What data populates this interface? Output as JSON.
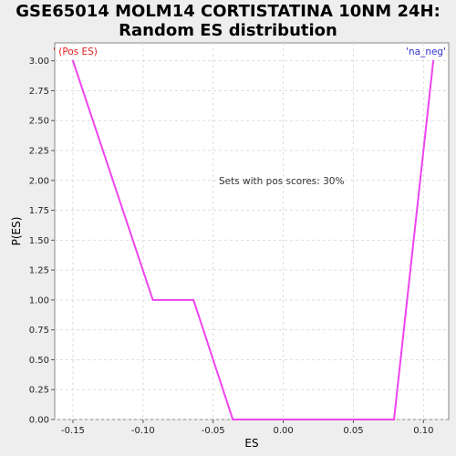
{
  "chart_data": {
    "type": "line",
    "title_lines": [
      "GSE65014 MOLM14 CORTISTATINA 10NM 24H:",
      "Random ES distribution"
    ],
    "xlabel": "ES",
    "ylabel": "P(ES)",
    "xlim": [
      -0.163,
      0.118
    ],
    "ylim": [
      0,
      3.15
    ],
    "xticks": [
      -0.15,
      -0.1,
      -0.05,
      0.0,
      0.05,
      0.1
    ],
    "xtick_labels": [
      "-0.15",
      "-0.10",
      "-0.05",
      "0.00",
      "0.05",
      "0.10"
    ],
    "yticks": [
      0,
      0.25,
      0.5,
      0.75,
      1.0,
      1.25,
      1.5,
      1.75,
      2.0,
      2.25,
      2.5,
      2.75,
      3.0
    ],
    "ytick_labels": [
      "0.00",
      "0.25",
      "0.50",
      "0.75",
      "1.00",
      "1.25",
      "1.50",
      "1.75",
      "2.00",
      "2.25",
      "2.50",
      "2.75",
      "3.00"
    ],
    "grid": true,
    "series": [
      {
        "color": "#ee44ee",
        "x": [
          -0.15,
          -0.093,
          -0.064,
          -0.036,
          0.079,
          0.107
        ],
        "y": [
          3.0,
          1.0,
          1.0,
          0.0,
          0.0,
          3.0
        ]
      }
    ],
    "annotations": {
      "center": "Sets with pos scores: 30%",
      "left": "' (Pos ES)",
      "right": "'na_neg'"
    },
    "colors": {
      "left_annotation": "#dd2222",
      "right_annotation": "#3333cc",
      "plot_background": "#ffffff",
      "page_background": "#eeeeee",
      "grid": "#dddddd"
    }
  }
}
